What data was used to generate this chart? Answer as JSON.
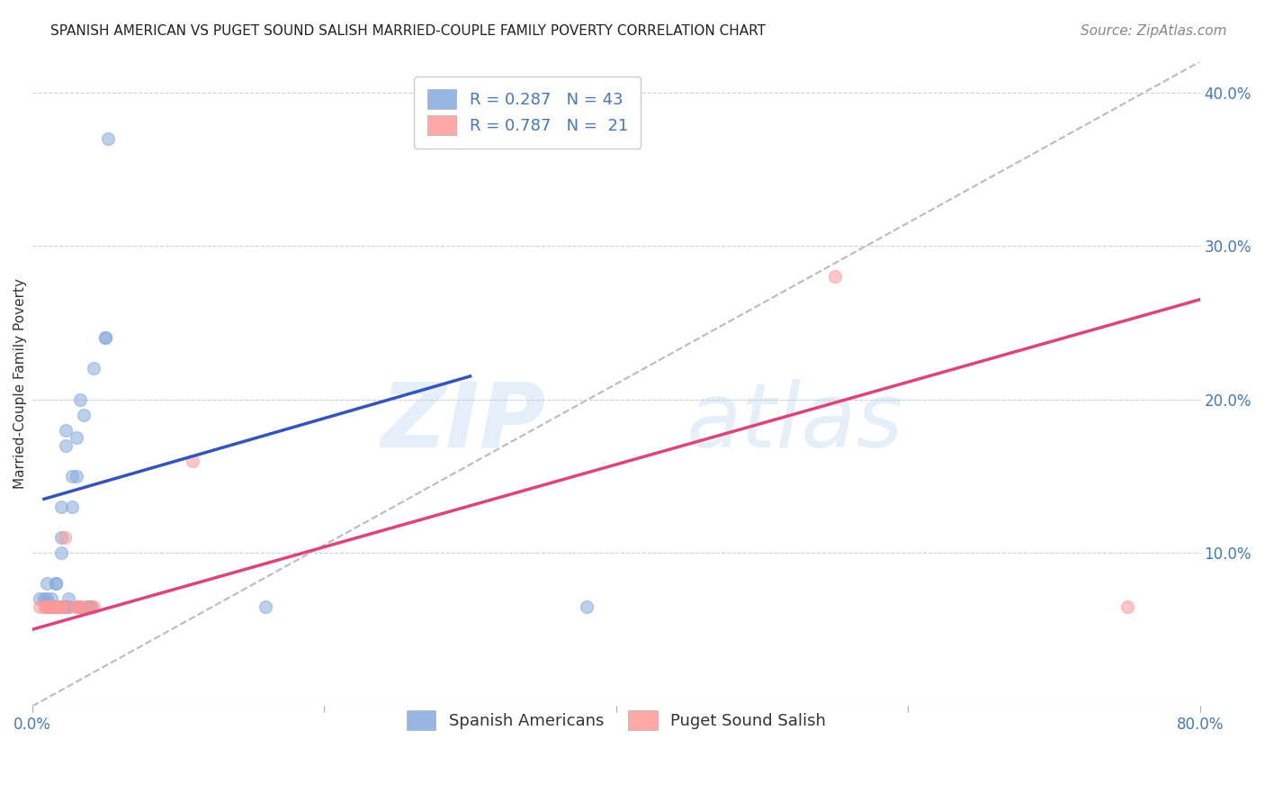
{
  "title": "SPANISH AMERICAN VS PUGET SOUND SALISH MARRIED-COUPLE FAMILY POVERTY CORRELATION CHART",
  "source": "Source: ZipAtlas.com",
  "ylabel_label": "Married-Couple Family Poverty",
  "xlim": [
    0.0,
    0.8
  ],
  "ylim": [
    0.0,
    0.42
  ],
  "xticks": [
    0.0,
    0.2,
    0.4,
    0.6,
    0.8
  ],
  "xtick_labels_show": [
    "0.0%",
    "",
    "",
    "",
    "80.0%"
  ],
  "yticks": [
    0.0,
    0.1,
    0.2,
    0.3,
    0.4
  ],
  "ytick_labels_right": [
    "",
    "10.0%",
    "20.0%",
    "30.0%",
    "40.0%"
  ],
  "blue_color": "#85AADD",
  "pink_color": "#FF9999",
  "blue_line_color": "#3355BB",
  "pink_line_color": "#DD4477",
  "diagonal_color": "#BBBBBB",
  "watermark_zip": "ZIP",
  "watermark_atlas": "atlas",
  "legend_R_blue": "R = 0.287",
  "legend_N_blue": "N = 43",
  "legend_R_pink": "R = 0.787",
  "legend_N_pink": "N =  21",
  "blue_scatter_x": [
    0.005,
    0.008,
    0.01,
    0.01,
    0.01,
    0.012,
    0.013,
    0.013,
    0.015,
    0.015,
    0.015,
    0.016,
    0.016,
    0.018,
    0.018,
    0.02,
    0.02,
    0.02,
    0.022,
    0.022,
    0.023,
    0.023,
    0.024,
    0.025,
    0.025,
    0.027,
    0.027,
    0.03,
    0.03,
    0.032,
    0.032,
    0.033,
    0.035,
    0.038,
    0.038,
    0.04,
    0.04,
    0.042,
    0.05,
    0.05,
    0.052,
    0.16,
    0.38
  ],
  "blue_scatter_y": [
    0.07,
    0.07,
    0.065,
    0.07,
    0.08,
    0.065,
    0.065,
    0.07,
    0.065,
    0.065,
    0.065,
    0.08,
    0.08,
    0.065,
    0.065,
    0.1,
    0.11,
    0.13,
    0.065,
    0.065,
    0.17,
    0.18,
    0.065,
    0.07,
    0.065,
    0.13,
    0.15,
    0.15,
    0.175,
    0.065,
    0.065,
    0.2,
    0.19,
    0.065,
    0.065,
    0.065,
    0.065,
    0.22,
    0.24,
    0.24,
    0.37,
    0.065,
    0.065
  ],
  "pink_scatter_x": [
    0.005,
    0.008,
    0.01,
    0.01,
    0.012,
    0.015,
    0.015,
    0.018,
    0.02,
    0.02,
    0.022,
    0.025,
    0.03,
    0.03,
    0.032,
    0.035,
    0.04,
    0.042,
    0.11,
    0.55,
    0.75
  ],
  "pink_scatter_y": [
    0.065,
    0.065,
    0.065,
    0.065,
    0.065,
    0.065,
    0.065,
    0.065,
    0.065,
    0.065,
    0.11,
    0.065,
    0.065,
    0.065,
    0.065,
    0.065,
    0.065,
    0.065,
    0.16,
    0.28,
    0.065
  ],
  "blue_line_x": [
    0.008,
    0.3
  ],
  "blue_line_y": [
    0.135,
    0.215
  ],
  "pink_line_x": [
    0.0,
    0.8
  ],
  "pink_line_y": [
    0.05,
    0.265
  ],
  "title_fontsize": 11,
  "axis_label_fontsize": 11,
  "tick_fontsize": 12,
  "legend_fontsize": 13,
  "source_fontsize": 11,
  "marker_size": 100,
  "background_color": "#FFFFFF",
  "grid_color": "#CCCCCC",
  "axis_color": "#4477BB",
  "axis_label_color": "#333333"
}
